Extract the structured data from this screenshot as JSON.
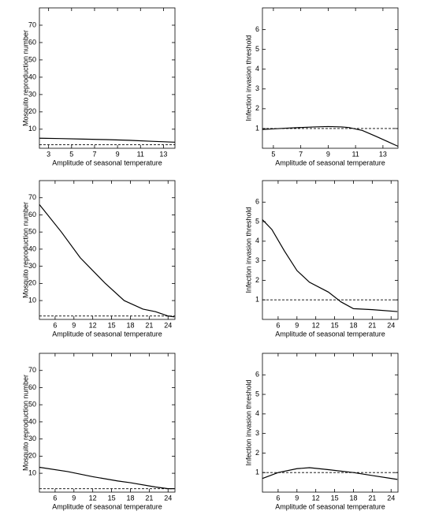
{
  "chart_data": [
    {
      "type": "line",
      "xlabel": "Amplitude of seasonal temperature",
      "ylabel": "Mosquito reproduction number",
      "x": [
        2.2,
        4,
        6,
        8,
        10,
        12,
        14
      ],
      "values": [
        4.8,
        4.6,
        4.3,
        4.0,
        3.6,
        3.0,
        2.5
      ],
      "color": "#000000",
      "xlim": [
        2.2,
        14
      ],
      "xticks": [
        3,
        5,
        7,
        9,
        11,
        13
      ],
      "ylim": [
        -1,
        80
      ],
      "yticks": [
        10,
        20,
        30,
        40,
        50,
        60,
        70
      ],
      "reference_y": 1
    },
    {
      "type": "line",
      "xlabel": "Amplitude of seasonal temperature",
      "ylabel": "Infection invasion threshold",
      "x": [
        4.2,
        6,
        8,
        9,
        10,
        10.5,
        11.5,
        12.5,
        13.3,
        14.1
      ],
      "values": [
        0.95,
        1.02,
        1.08,
        1.1,
        1.08,
        1.05,
        0.9,
        0.6,
        0.35,
        0.1
      ],
      "color": "#000000",
      "xlim": [
        4.2,
        14.1
      ],
      "xticks": [
        5,
        7,
        9,
        11,
        13
      ],
      "ylim": [
        0,
        7.1
      ],
      "yticks": [
        1,
        2,
        3,
        4,
        5,
        6
      ],
      "reference_y": 1
    },
    {
      "type": "line",
      "xlabel": "Amplitude of seasonal temperature",
      "ylabel": "Mosquito reproduction number",
      "x": [
        3.5,
        7,
        10,
        14,
        17,
        20,
        22,
        24,
        25
      ],
      "values": [
        66,
        50,
        35,
        20,
        10,
        5,
        3.5,
        1,
        0.5
      ],
      "color": "#000000",
      "xlim": [
        3.5,
        25.1
      ],
      "xticks": [
        6,
        9,
        12,
        15,
        18,
        21,
        24
      ],
      "ylim": [
        -1,
        80
      ],
      "yticks": [
        10,
        20,
        30,
        40,
        50,
        60,
        70
      ],
      "reference_y": 1
    },
    {
      "type": "line",
      "xlabel": "Amplitude of seasonal temperature",
      "ylabel": "Infection invasion threshold",
      "x": [
        3.5,
        5,
        7,
        9,
        11,
        14,
        16,
        18,
        21,
        25
      ],
      "values": [
        5.1,
        4.6,
        3.5,
        2.5,
        1.9,
        1.4,
        0.9,
        0.55,
        0.5,
        0.4
      ],
      "color": "#000000",
      "xlim": [
        3.5,
        25.1
      ],
      "xticks": [
        6,
        9,
        12,
        15,
        18,
        21,
        24
      ],
      "ylim": [
        0,
        7.1
      ],
      "yticks": [
        1,
        2,
        3,
        4,
        5,
        6
      ],
      "reference_y": 1
    },
    {
      "type": "line",
      "xlabel": "Amplitude of seasonal temperature",
      "ylabel": "Mosquito reproduction number",
      "x": [
        3.5,
        8,
        12,
        16,
        18,
        22,
        24,
        25
      ],
      "values": [
        13.5,
        11,
        8,
        5.5,
        4.5,
        2,
        1,
        1
      ],
      "color": "#000000",
      "xlim": [
        3.5,
        25.1
      ],
      "xticks": [
        6,
        9,
        12,
        15,
        18,
        21,
        24
      ],
      "ylim": [
        -1,
        80
      ],
      "yticks": [
        10,
        20,
        30,
        40,
        50,
        60,
        70
      ],
      "reference_y": 1
    },
    {
      "type": "line",
      "xlabel": "Amplitude of seasonal temperature",
      "ylabel": "Infection invasion threshold",
      "x": [
        3.5,
        6,
        9,
        11,
        14,
        18,
        21,
        25
      ],
      "values": [
        0.7,
        1.0,
        1.2,
        1.25,
        1.15,
        1.0,
        0.85,
        0.65
      ],
      "color": "#000000",
      "xlim": [
        3.5,
        25.1
      ],
      "xticks": [
        6,
        9,
        12,
        15,
        18,
        21,
        24
      ],
      "ylim": [
        0,
        7.1
      ],
      "yticks": [
        1,
        2,
        3,
        4,
        5,
        6
      ],
      "reference_y": 1
    }
  ]
}
